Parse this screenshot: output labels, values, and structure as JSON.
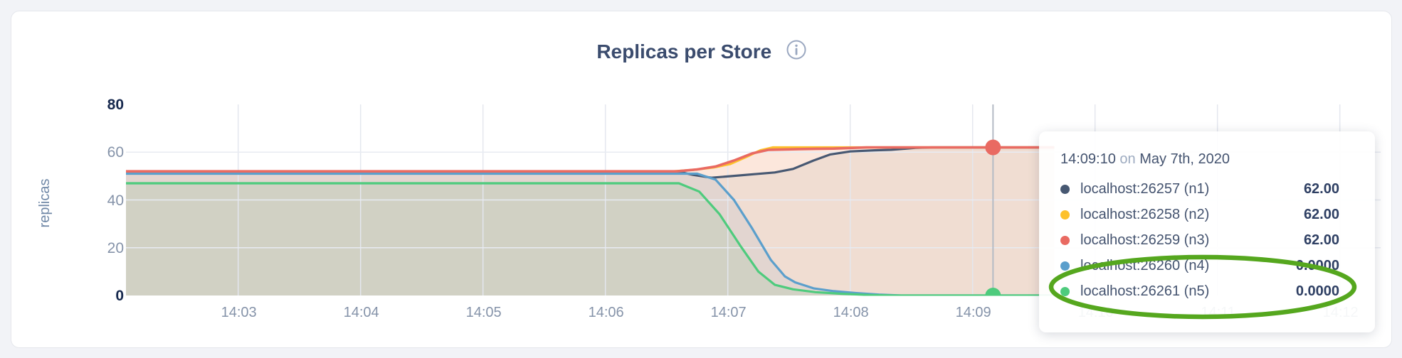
{
  "card": {
    "title": "Replicas per Store",
    "info_icon": "info-circle-icon"
  },
  "y_axis": {
    "label": "replicas",
    "ticks": [
      {
        "value": 0,
        "label": "0",
        "bold": true
      },
      {
        "value": 20,
        "label": "20",
        "bold": false
      },
      {
        "value": 40,
        "label": "40",
        "bold": false
      },
      {
        "value": 60,
        "label": "60",
        "bold": false
      },
      {
        "value": 80,
        "label": "80",
        "bold": true
      }
    ]
  },
  "x_axis": {
    "ticks": [
      {
        "t": 180,
        "label": "14:03"
      },
      {
        "t": 240,
        "label": "14:04"
      },
      {
        "t": 300,
        "label": "14:05"
      },
      {
        "t": 360,
        "label": "14:06"
      },
      {
        "t": 420,
        "label": "14:07"
      },
      {
        "t": 480,
        "label": "14:08"
      },
      {
        "t": 540,
        "label": "14:09"
      },
      {
        "t": 600,
        "label": "14:10"
      },
      {
        "t": 660,
        "label": "14:11"
      },
      {
        "t": 720,
        "label": "14:12"
      }
    ]
  },
  "tooltip": {
    "time": "14:09:10",
    "on_word": "on",
    "date": "May 7th, 2020",
    "rows": [
      {
        "color": "#475872",
        "label": "localhost:26257 (n1)",
        "value": "62.00"
      },
      {
        "color": "#fdc12b",
        "label": "localhost:26258 (n2)",
        "value": "62.00"
      },
      {
        "color": "#e96a62",
        "label": "localhost:26259 (n3)",
        "value": "62.00"
      },
      {
        "color": "#5b9fcc",
        "label": "localhost:26260 (n4)",
        "value": "0.0000"
      },
      {
        "color": "#4ecb7d",
        "label": "localhost:26261 (n5)",
        "value": "0.0000"
      }
    ]
  },
  "annotation": {
    "shape": "ellipse",
    "color": "#55a71e",
    "circles_rows": [
      "localhost:26260 (n4)",
      "localhost:26261 (n5)"
    ]
  },
  "chart_data": {
    "type": "area",
    "title": "Replicas per Store",
    "ylabel": "replicas",
    "ylim": [
      0,
      80
    ],
    "x_unit": "seconds after 14:00",
    "x_window": [
      125,
      740
    ],
    "data_end_t": 580,
    "grid": true,
    "legend_position": "tooltip",
    "hover": {
      "time": "14:09:10",
      "t": 550,
      "line_color": "#b4bac4",
      "markers": [
        {
          "series": "localhost:26259 (n3)",
          "color": "#e96a62",
          "t": 550,
          "value": 62
        },
        {
          "series": "localhost:26261 (n5)",
          "color": "#4ecb7d",
          "t": 550,
          "value": 0
        }
      ]
    },
    "series": [
      {
        "name": "localhost:26257 (n1)",
        "color": "#475872",
        "fill_opacity": 0.08,
        "width": 3.2,
        "points": [
          [
            125,
            52
          ],
          [
            395,
            52
          ],
          [
            403,
            50.5
          ],
          [
            412,
            49.3
          ],
          [
            422,
            50
          ],
          [
            433,
            50.8
          ],
          [
            443,
            51.5
          ],
          [
            452,
            53
          ],
          [
            462,
            56.5
          ],
          [
            470,
            59
          ],
          [
            480,
            60.3
          ],
          [
            492,
            60.8
          ],
          [
            500,
            61
          ],
          [
            512,
            61.8
          ],
          [
            520,
            62
          ],
          [
            580,
            62
          ]
        ]
      },
      {
        "name": "localhost:26258 (n2)",
        "color": "#fdc12b",
        "fill_opacity": 0.08,
        "width": 3.2,
        "points": [
          [
            125,
            52
          ],
          [
            393,
            52
          ],
          [
            403,
            52.6
          ],
          [
            413,
            53.6
          ],
          [
            421,
            55
          ],
          [
            429,
            58
          ],
          [
            436,
            60.8
          ],
          [
            442,
            62
          ],
          [
            580,
            62
          ]
        ]
      },
      {
        "name": "localhost:26260 (n4)",
        "color": "#5b9fcc",
        "fill_opacity": 0.1,
        "width": 3.2,
        "points": [
          [
            125,
            51
          ],
          [
            405,
            51
          ],
          [
            414,
            48.5
          ],
          [
            423,
            40
          ],
          [
            432,
            28
          ],
          [
            441,
            15
          ],
          [
            448,
            8
          ],
          [
            453,
            5.5
          ],
          [
            462,
            3
          ],
          [
            472,
            1.8
          ],
          [
            483,
            1
          ],
          [
            494,
            0.4
          ],
          [
            505,
            0
          ],
          [
            580,
            0
          ]
        ]
      },
      {
        "name": "localhost:26261 (n5)",
        "color": "#4ecb7d",
        "fill_opacity": 0.13,
        "width": 3.2,
        "points": [
          [
            125,
            47
          ],
          [
            396,
            47
          ],
          [
            406,
            43.5
          ],
          [
            416,
            34
          ],
          [
            426,
            21
          ],
          [
            435,
            10
          ],
          [
            443,
            4.5
          ],
          [
            452,
            2.6
          ],
          [
            463,
            1.4
          ],
          [
            476,
            0.7
          ],
          [
            490,
            0.2
          ],
          [
            502,
            0
          ],
          [
            580,
            0
          ]
        ]
      },
      {
        "name": "localhost:26259 (n3)",
        "color": "#e96a62",
        "fill_opacity": 0.13,
        "width": 3.6,
        "points": [
          [
            125,
            52
          ],
          [
            395,
            52
          ],
          [
            405,
            52.8
          ],
          [
            414,
            54
          ],
          [
            423,
            56.5
          ],
          [
            432,
            59.5
          ],
          [
            440,
            61
          ],
          [
            455,
            61.3
          ],
          [
            472,
            61.5
          ],
          [
            488,
            62
          ],
          [
            580,
            62
          ]
        ]
      }
    ]
  }
}
